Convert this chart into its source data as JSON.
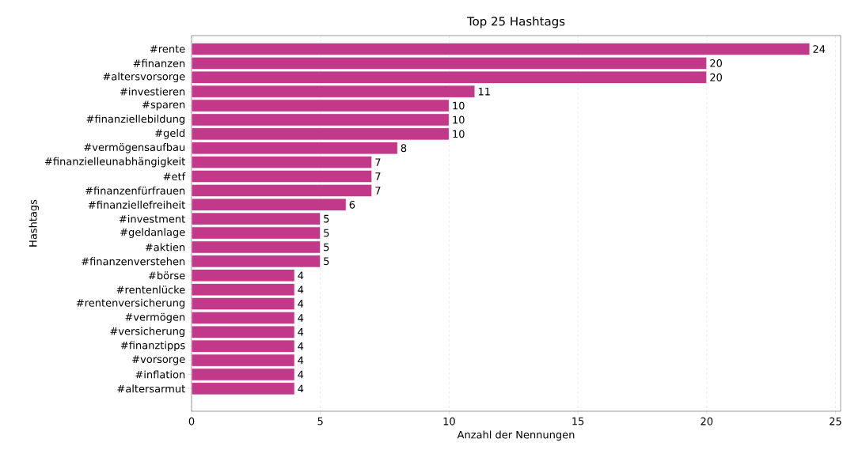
{
  "chart_data": {
    "type": "bar",
    "orientation": "horizontal",
    "title": "Top 25 Hashtags",
    "xlabel": "Anzahl der Nennungen",
    "ylabel": "Hashtags",
    "categories": [
      "#rente",
      "#finanzen",
      "#altersvorsorge",
      "#investieren",
      "#sparen",
      "#finanziellebildung",
      "#geld",
      "#vermögensaufbau",
      "#finanzielleunabhängigkeit",
      "#etf",
      "#finanzenfürfrauen",
      "#finanziellefreiheit",
      "#investment",
      "#geldanlage",
      "#aktien",
      "#finanzenverstehen",
      "#börse",
      "#rentenlücke",
      "#rentenversicherung",
      "#vermögen",
      "#versicherung",
      "#finanztipps",
      "#vorsorge",
      "#inflation",
      "#altersarmut"
    ],
    "values": [
      24,
      20,
      20,
      11,
      10,
      10,
      10,
      8,
      7,
      7,
      7,
      6,
      5,
      5,
      5,
      5,
      4,
      4,
      4,
      4,
      4,
      4,
      4,
      4,
      4
    ],
    "color": "#c2398a",
    "xlim": [
      0,
      25.2
    ],
    "xticks": [
      0,
      5,
      10,
      15,
      20,
      25
    ],
    "grid": "x",
    "data_labels": true
  }
}
